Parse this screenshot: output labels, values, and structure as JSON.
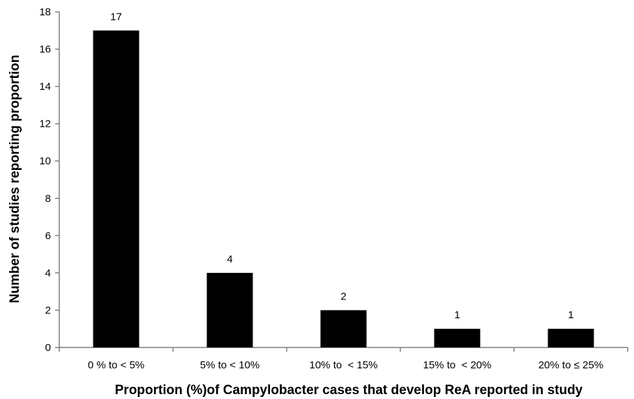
{
  "chart_data": {
    "type": "bar",
    "categories": [
      "0 % to < 5%",
      "5% to < 10%",
      "10% to  < 15%",
      "15% to  < 20%",
      "20% to ≤ 25%"
    ],
    "values": [
      17,
      4,
      2,
      1,
      1
    ],
    "data_labels": [
      "17",
      "4",
      "2",
      "1",
      "1"
    ],
    "title": "",
    "xlabel": "Proportion (%)of Campylobacter cases that develop ReA reported in study",
    "ylabel": "Number of studies reporting proportion",
    "ylim": [
      0,
      18
    ],
    "yticks": [
      0,
      2,
      4,
      6,
      8,
      10,
      12,
      14,
      16,
      18
    ],
    "grid": false,
    "legend": "none",
    "bar_color": "#000000",
    "axis_color": "#7f7f7f"
  }
}
